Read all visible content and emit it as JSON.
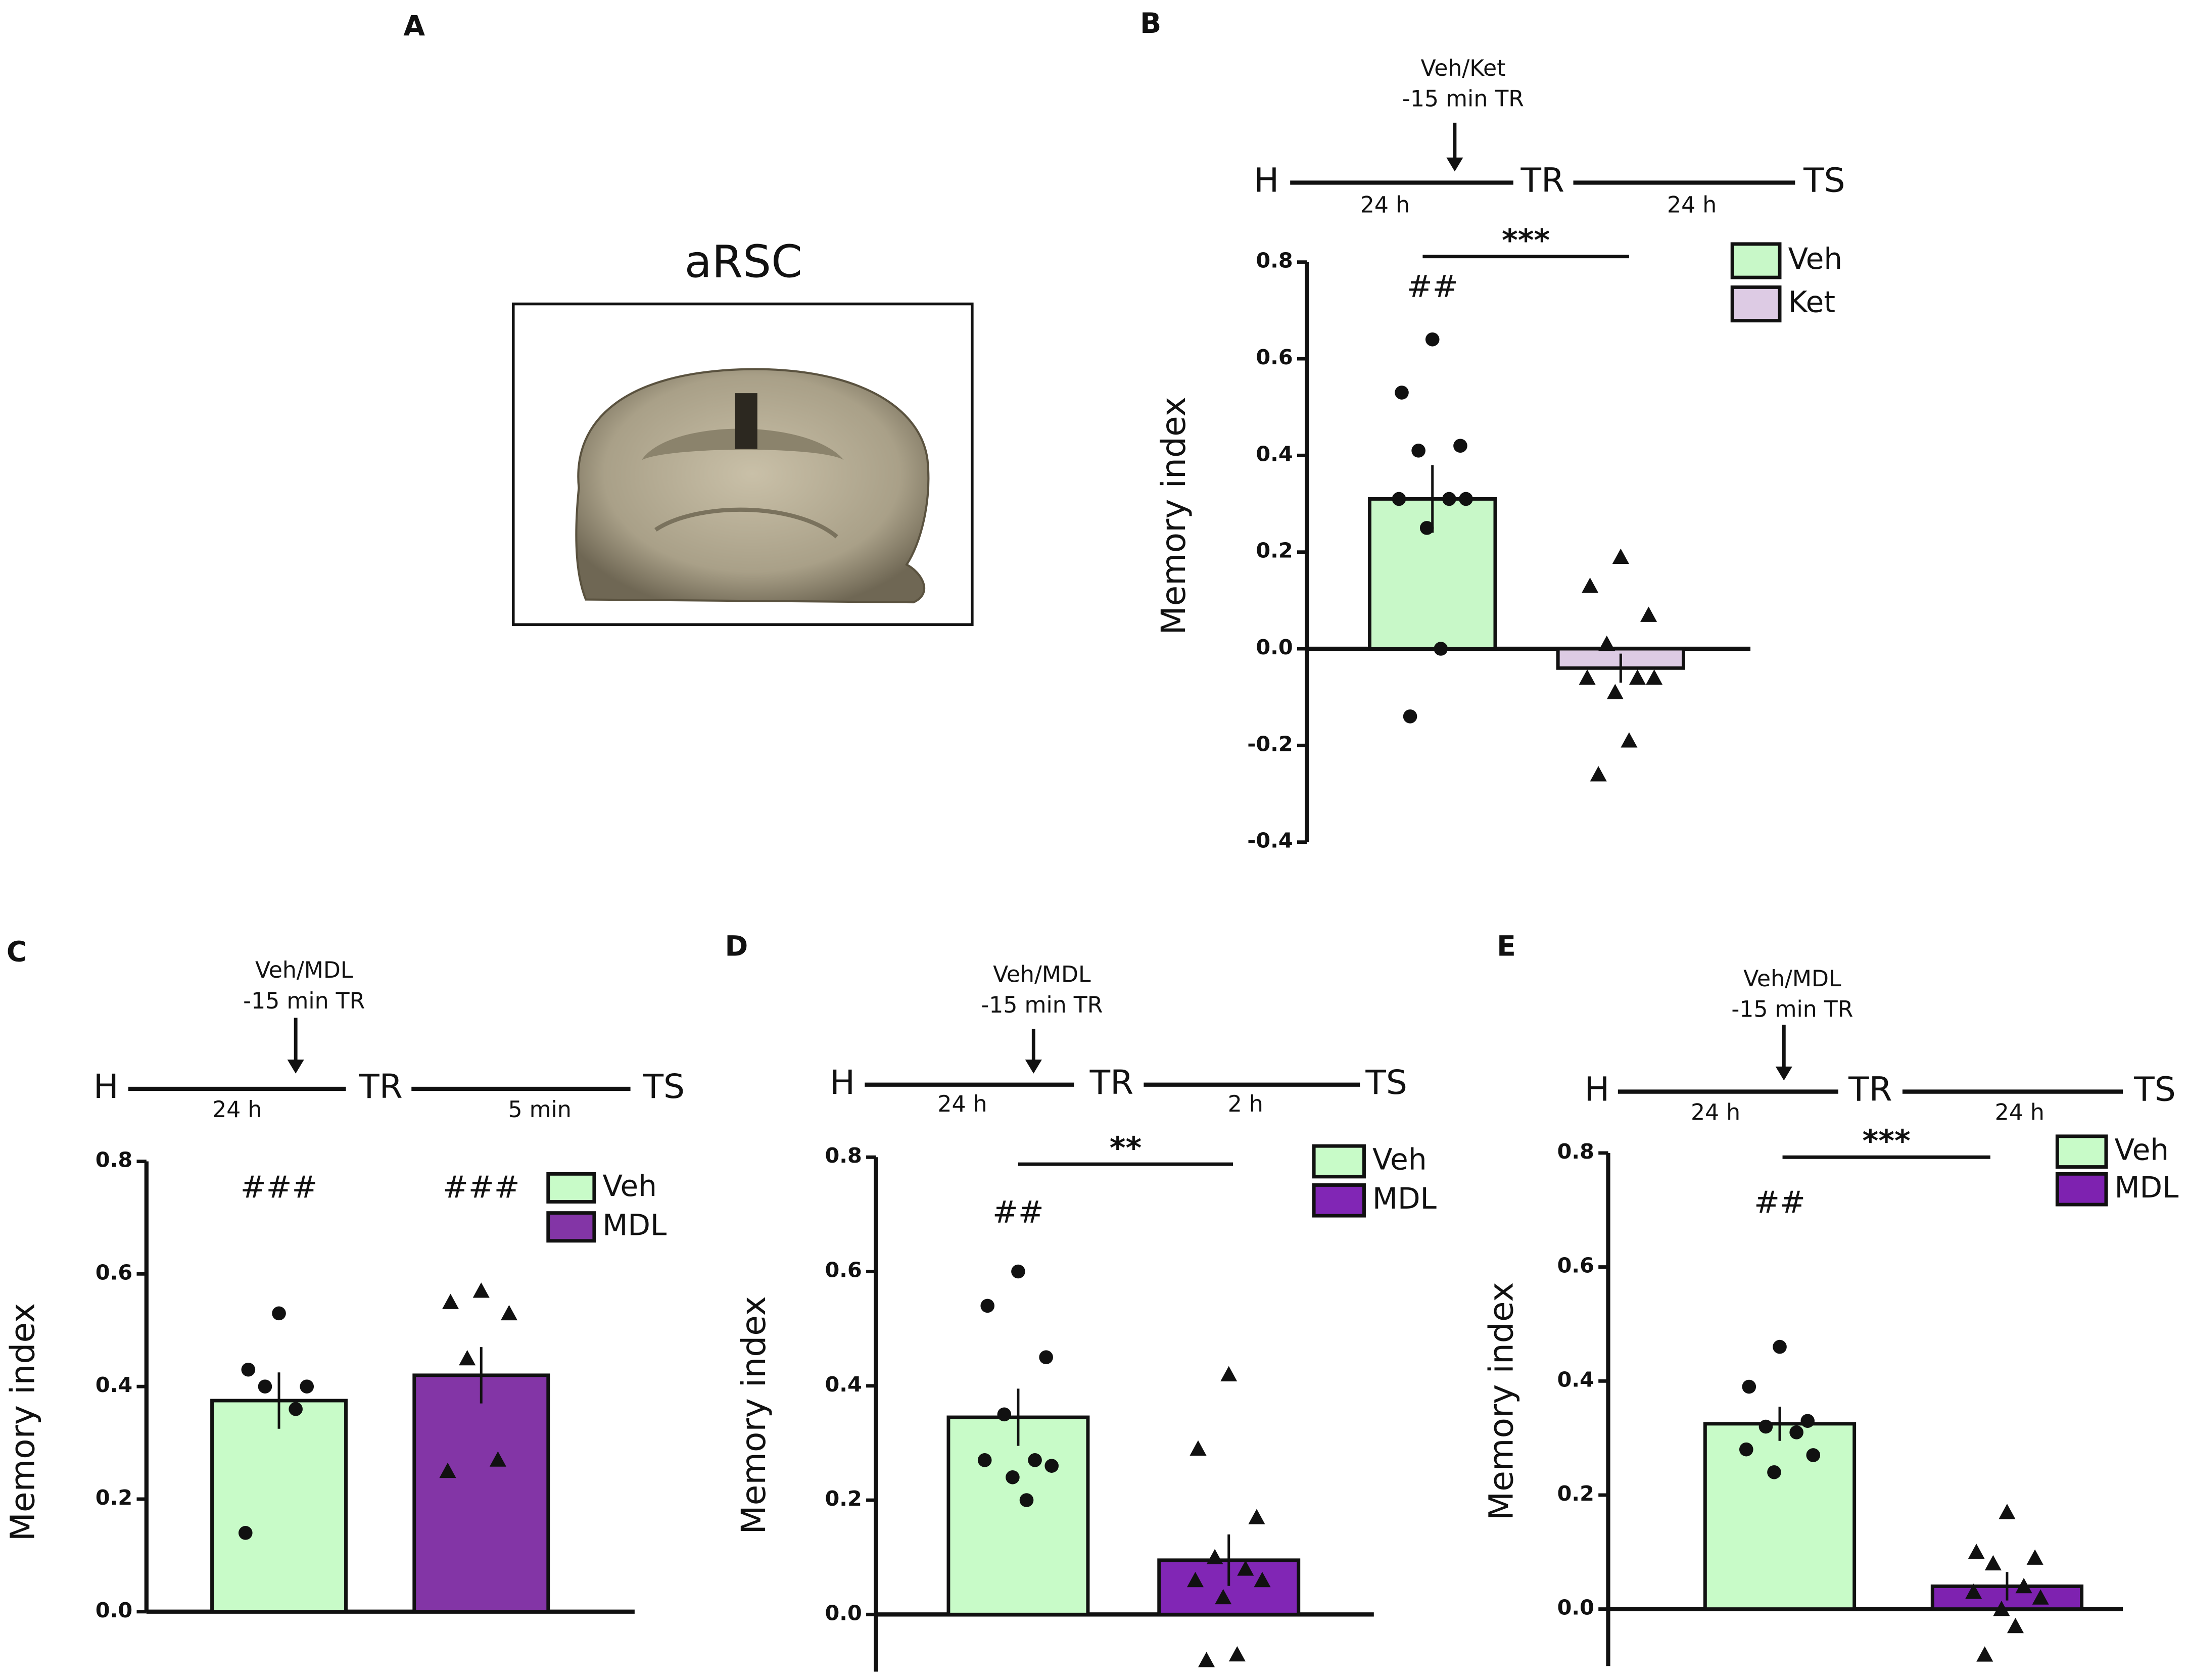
{
  "panel_a": {
    "label": "A",
    "title": "aRSC"
  },
  "chart_data": [
    {
      "type": "bar",
      "panel": "B",
      "ylabel": "Memory index",
      "timeline": {
        "drug": "Veh/Ket",
        "time": "-15 min TR",
        "stages": [
          "H",
          "TR",
          "TS"
        ],
        "intervals": [
          "24 h",
          "24 h"
        ]
      },
      "comparison": "***",
      "ylim": [
        -0.4,
        0.8
      ],
      "yticks": [
        0.8,
        0.6,
        0.4,
        0.2,
        {
          "value": 0,
          "label": "0.0"
        },
        -0.2,
        -0.4
      ],
      "series": [
        {
          "name": "Veh",
          "color": "#c8f8c8",
          "marker": "circle",
          "significance": "##",
          "values": [
            0.31
          ],
          "errors": [
            0.07
          ],
          "points": [
            0.64,
            0.53,
            0.42,
            0.41,
            0.31,
            0.31,
            0.31,
            0.25,
            0.0,
            -0.14
          ]
        },
        {
          "name": "Ket",
          "color": "#ddcbe4",
          "marker": "triangle",
          "values": [
            -0.04
          ],
          "errors": [
            0.03
          ],
          "points": [
            0.19,
            0.13,
            0.07,
            0.01,
            -0.06,
            -0.06,
            -0.06,
            -0.09,
            -0.19,
            -0.26
          ]
        }
      ]
    },
    {
      "type": "bar",
      "panel": "C",
      "ylabel": "Memory index",
      "timeline": {
        "drug": "Veh/MDL",
        "time": "-15 min TR",
        "stages": [
          "H",
          "TR",
          "TS"
        ],
        "intervals": [
          "24 h",
          "5 min"
        ]
      },
      "ylim": [
        0,
        0.8
      ],
      "yticks": [
        0.8,
        0.6,
        0.4,
        0.2,
        {
          "value": 0,
          "label": "0.0"
        }
      ],
      "series": [
        {
          "name": "Veh",
          "color": "#c8fbc8",
          "marker": "circle",
          "significance": "###",
          "values": [
            0.375
          ],
          "errors": [
            0.05
          ],
          "points": [
            0.53,
            0.43,
            0.4,
            0.4,
            0.36,
            0.14
          ]
        },
        {
          "name": "MDL",
          "color": "#8335a6",
          "marker": "triangle",
          "significance": "###",
          "values": [
            0.42
          ],
          "errors": [
            0.05
          ],
          "points": [
            0.57,
            0.55,
            0.53,
            0.45,
            0.27,
            0.25
          ]
        }
      ]
    },
    {
      "type": "bar",
      "panel": "D",
      "ylabel": "Memory index",
      "timeline": {
        "drug": "Veh/MDL",
        "time": "-15 min TR",
        "stages": [
          "H",
          "TR",
          "TS"
        ],
        "intervals": [
          "24 h",
          "2 h"
        ]
      },
      "comparison": "**",
      "ylim": [
        -0.1,
        0.8
      ],
      "yticks": [
        0.8,
        0.6,
        0.4,
        0.2,
        {
          "value": 0,
          "label": "0.0"
        }
      ],
      "series": [
        {
          "name": "Veh",
          "color": "#c8fbc8",
          "marker": "circle",
          "significance": "##",
          "values": [
            0.345
          ],
          "errors": [
            0.05
          ],
          "points": [
            0.6,
            0.54,
            0.45,
            0.35,
            0.27,
            0.27,
            0.26,
            0.24,
            0.2
          ]
        },
        {
          "name": "MDL",
          "color": "#8126b5",
          "marker": "triangle",
          "values": [
            0.095
          ],
          "errors": [
            0.045
          ],
          "points": [
            0.42,
            0.29,
            0.17,
            0.1,
            0.08,
            0.06,
            0.06,
            0.03,
            -0.07,
            -0.08
          ]
        }
      ]
    },
    {
      "type": "bar",
      "panel": "E",
      "ylabel": "Memory index",
      "timeline": {
        "drug": "Veh/MDL",
        "time": "-15 min TR",
        "stages": [
          "H",
          "TR",
          "TS"
        ],
        "intervals": [
          "24 h",
          "24 h"
        ]
      },
      "comparison": "***",
      "ylim": [
        -0.1,
        0.8
      ],
      "yticks": [
        0.8,
        0.6,
        0.4,
        0.2,
        {
          "value": 0,
          "label": "0.0"
        }
      ],
      "series": [
        {
          "name": "Veh",
          "color": "#c8fbc8",
          "marker": "circle",
          "significance": "##",
          "values": [
            0.325
          ],
          "errors": [
            0.03
          ],
          "points": [
            0.46,
            0.39,
            0.33,
            0.32,
            0.31,
            0.28,
            0.27,
            0.24
          ]
        },
        {
          "name": "MDL",
          "color": "#7e22b0",
          "marker": "triangle",
          "values": [
            0.04
          ],
          "errors": [
            0.025
          ],
          "points": [
            0.17,
            0.1,
            0.09,
            0.08,
            0.04,
            0.03,
            0.02,
            0.0,
            -0.03,
            -0.08
          ]
        }
      ]
    }
  ]
}
